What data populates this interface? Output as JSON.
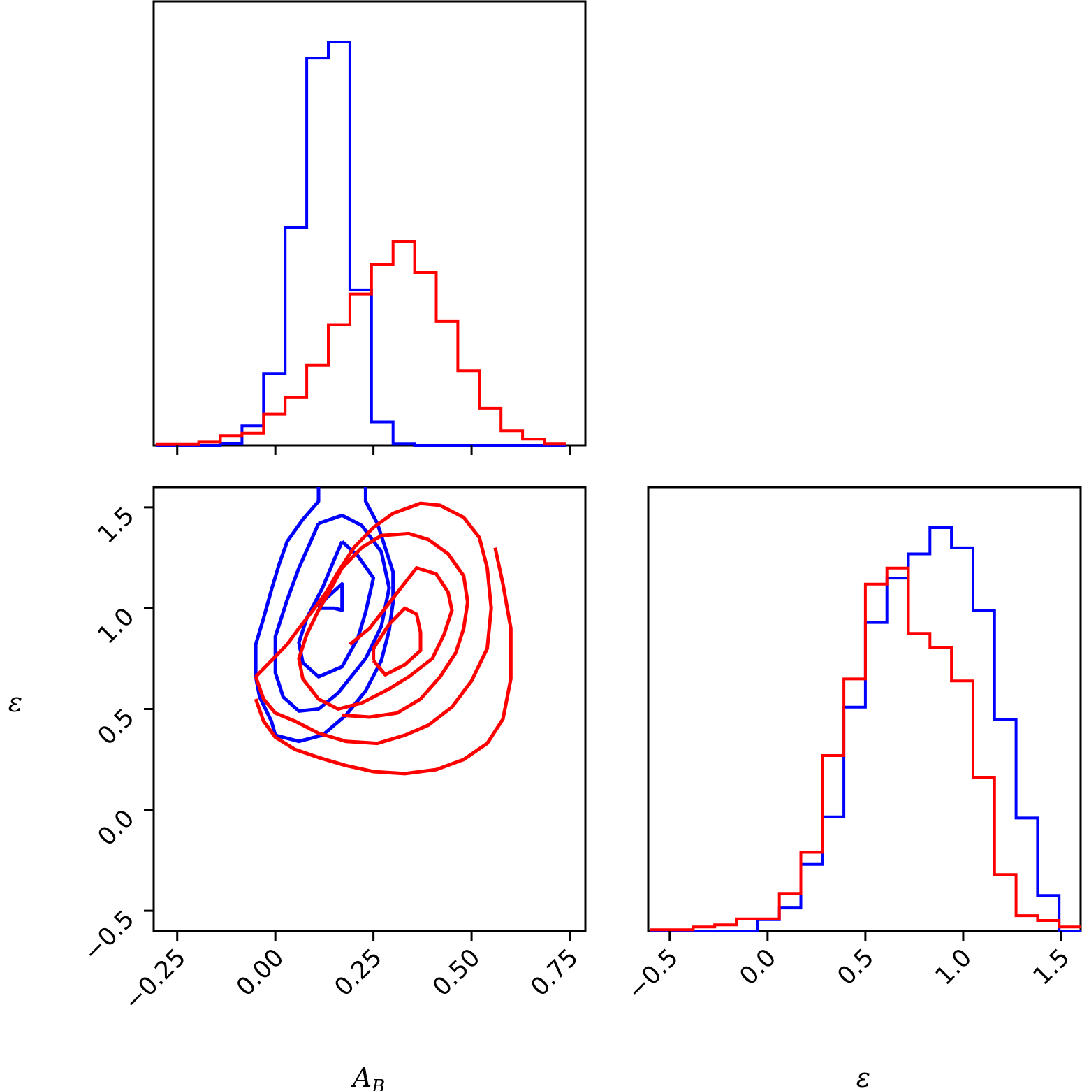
{
  "chart_data": [
    {
      "type": "histogram",
      "panel": "top-left",
      "xlabel": "",
      "ylabel": "",
      "xlim": [
        -0.31,
        0.79
      ],
      "ylim": [
        0,
        1
      ],
      "x_ticks": [
        -0.25,
        0.0,
        0.25,
        0.5,
        0.75
      ],
      "y_ticks": [],
      "tick_labels_shown": false,
      "bin_edges": [
        -0.305,
        -0.25,
        -0.195,
        -0.14,
        -0.085,
        -0.03,
        0.025,
        0.08,
        0.135,
        0.19,
        0.245,
        0.3,
        0.355,
        0.41,
        0.465,
        0.52,
        0.575,
        0.63,
        0.685,
        0.74
      ],
      "series": [
        {
          "color": "#0000ff",
          "counts": [
            0,
            0,
            0,
            0.005,
            0.048,
            0.178,
            0.54,
            0.96,
            1.0,
            0.385,
            0.058,
            0.003,
            0,
            0,
            0,
            0,
            0,
            0,
            0
          ]
        },
        {
          "color": "#ff0000",
          "counts": [
            0.002,
            0.002,
            0.008,
            0.024,
            0.03,
            0.077,
            0.118,
            0.198,
            0.299,
            0.375,
            0.448,
            0.505,
            0.428,
            0.307,
            0.185,
            0.092,
            0.036,
            0.015,
            0.003
          ]
        }
      ]
    },
    {
      "type": "contour",
      "panel": "bottom-left",
      "xlabel": "A_B",
      "ylabel": "ε",
      "xlim": [
        -0.31,
        0.79
      ],
      "ylim": [
        -0.6,
        1.6
      ],
      "x_ticks": [
        -0.25,
        0.0,
        0.25,
        0.5,
        0.75
      ],
      "x_tick_labels": [
        "−0.25",
        "0.00",
        "0.25",
        "0.50",
        "0.75"
      ],
      "y_ticks": [
        -0.5,
        0.0,
        0.5,
        1.0,
        1.5
      ],
      "y_tick_labels": [
        "−0.5",
        "0.0",
        "0.5",
        "1.0",
        "1.5"
      ],
      "series": [
        {
          "color": "#0000ff",
          "contours": [
            [
              [
                0.11,
                1.0
              ],
              [
                0.13,
                1.05
              ],
              [
                0.17,
                1.12
              ],
              [
                0.17,
                0.99
              ],
              [
                0.15,
                1.0
              ],
              [
                0.11,
                1.0
              ]
            ],
            [
              [
                0.17,
                1.33
              ],
              [
                0.21,
                1.26
              ],
              [
                0.25,
                1.15
              ],
              [
                0.23,
                0.98
              ],
              [
                0.21,
                0.85
              ],
              [
                0.17,
                0.71
              ],
              [
                0.11,
                0.66
              ],
              [
                0.07,
                0.73
              ],
              [
                0.06,
                0.83
              ],
              [
                0.08,
                0.95
              ],
              [
                0.12,
                1.1
              ],
              [
                0.15,
                1.24
              ],
              [
                0.17,
                1.33
              ]
            ],
            [
              [
                0.11,
                1.42
              ],
              [
                0.17,
                1.46
              ],
              [
                0.22,
                1.41
              ],
              [
                0.27,
                1.28
              ],
              [
                0.29,
                1.1
              ],
              [
                0.27,
                0.91
              ],
              [
                0.23,
                0.75
              ],
              [
                0.16,
                0.58
              ],
              [
                0.11,
                0.5
              ],
              [
                0.06,
                0.49
              ],
              [
                0.02,
                0.56
              ],
              [
                0.0,
                0.68
              ],
              [
                0.0,
                0.86
              ],
              [
                0.03,
                1.04
              ],
              [
                0.06,
                1.2
              ],
              [
                0.09,
                1.33
              ],
              [
                0.11,
                1.42
              ]
            ],
            [
              [
                0.11,
                1.6
              ],
              [
                0.11,
                1.53
              ],
              [
                0.07,
                1.44
              ],
              [
                0.03,
                1.33
              ],
              [
                0.01,
                1.22
              ],
              [
                -0.01,
                1.09
              ],
              [
                -0.03,
                0.95
              ],
              [
                -0.05,
                0.82
              ],
              [
                -0.05,
                0.66
              ],
              [
                -0.04,
                0.56
              ],
              [
                -0.01,
                0.44
              ],
              [
                0.0,
                0.37
              ],
              [
                0.06,
                0.34
              ],
              [
                0.12,
                0.37
              ],
              [
                0.18,
                0.47
              ],
              [
                0.23,
                0.59
              ],
              [
                0.27,
                0.74
              ],
              [
                0.29,
                0.89
              ],
              [
                0.3,
                1.03
              ],
              [
                0.3,
                1.18
              ],
              [
                0.28,
                1.3
              ],
              [
                0.26,
                1.42
              ],
              [
                0.23,
                1.53
              ],
              [
                0.23,
                1.6
              ]
            ]
          ]
        },
        {
          "color": "#ff0000",
          "contours": [
            [
              [
                0.25,
                0.74
              ],
              [
                0.28,
                0.67
              ],
              [
                0.33,
                0.72
              ],
              [
                0.37,
                0.79
              ],
              [
                0.37,
                0.88
              ],
              [
                0.36,
                0.97
              ],
              [
                0.33,
                1.0
              ],
              [
                0.29,
                0.92
              ],
              [
                0.25,
                0.8
              ],
              [
                0.25,
                0.74
              ]
            ],
            [
              [
                0.19,
                0.82
              ],
              [
                0.24,
                0.9
              ],
              [
                0.28,
                1.0
              ],
              [
                0.32,
                1.1
              ],
              [
                0.36,
                1.2
              ],
              [
                0.41,
                1.17
              ],
              [
                0.44,
                1.08
              ],
              [
                0.45,
                0.99
              ],
              [
                0.43,
                0.87
              ],
              [
                0.4,
                0.75
              ],
              [
                0.34,
                0.66
              ],
              [
                0.29,
                0.6
              ],
              [
                0.22,
                0.53
              ],
              [
                0.16,
                0.5
              ],
              [
                0.11,
                0.55
              ],
              [
                0.07,
                0.65
              ],
              [
                0.06,
                0.75
              ],
              [
                0.08,
                0.87
              ],
              [
                0.11,
                0.99
              ],
              [
                0.14,
                1.09
              ],
              [
                0.17,
                1.2
              ],
              [
                0.22,
                1.3
              ],
              [
                0.27,
                1.36
              ],
              [
                0.34,
                1.37
              ],
              [
                0.39,
                1.34
              ],
              [
                0.44,
                1.27
              ],
              [
                0.48,
                1.16
              ],
              [
                0.49,
                1.03
              ],
              [
                0.48,
                0.9
              ],
              [
                0.46,
                0.78
              ],
              [
                0.42,
                0.66
              ],
              [
                0.37,
                0.55
              ],
              [
                0.31,
                0.48
              ],
              [
                0.24,
                0.46
              ],
              [
                0.17,
                0.47
              ]
            ],
            [
              [
                -0.05,
                0.66
              ],
              [
                -0.02,
                0.72
              ],
              [
                0.03,
                0.82
              ],
              [
                0.06,
                0.9
              ],
              [
                0.1,
                1.0
              ],
              [
                0.13,
                1.08
              ],
              [
                0.16,
                1.18
              ],
              [
                0.2,
                1.3
              ],
              [
                0.25,
                1.4
              ],
              [
                0.3,
                1.47
              ],
              [
                0.37,
                1.52
              ],
              [
                0.42,
                1.51
              ],
              [
                0.48,
                1.45
              ],
              [
                0.52,
                1.35
              ],
              [
                0.54,
                1.2
              ],
              [
                0.55,
                1.0
              ],
              [
                0.54,
                0.8
              ],
              [
                0.5,
                0.64
              ],
              [
                0.45,
                0.51
              ],
              [
                0.39,
                0.42
              ],
              [
                0.33,
                0.37
              ],
              [
                0.26,
                0.33
              ],
              [
                0.18,
                0.34
              ],
              [
                0.11,
                0.38
              ],
              [
                0.05,
                0.44
              ],
              [
                0.0,
                0.48
              ],
              [
                -0.03,
                0.55
              ],
              [
                -0.05,
                0.66
              ]
            ],
            [
              [
                -0.05,
                0.55
              ],
              [
                -0.03,
                0.44
              ],
              [
                0.0,
                0.36
              ],
              [
                0.05,
                0.3
              ],
              [
                0.11,
                0.26
              ],
              [
                0.18,
                0.22
              ],
              [
                0.25,
                0.19
              ],
              [
                0.33,
                0.18
              ],
              [
                0.41,
                0.2
              ],
              [
                0.48,
                0.25
              ],
              [
                0.54,
                0.33
              ],
              [
                0.58,
                0.45
              ],
              [
                0.6,
                0.65
              ],
              [
                0.6,
                0.9
              ],
              [
                0.58,
                1.12
              ],
              [
                0.56,
                1.3
              ]
            ]
          ]
        }
      ]
    },
    {
      "type": "histogram",
      "panel": "bottom-right",
      "xlabel": "ε",
      "ylabel": "",
      "xlim": [
        -0.61,
        1.6
      ],
      "ylim": [
        0,
        1
      ],
      "x_ticks": [
        -0.5,
        0.0,
        0.5,
        1.0,
        1.5
      ],
      "x_tick_labels": [
        "−0.5",
        "0.0",
        "0.5",
        "1.0",
        "1.5"
      ],
      "y_ticks": [],
      "bin_edges": [
        -0.6,
        -0.49,
        -0.38,
        -0.27,
        -0.16,
        -0.05,
        0.06,
        0.17,
        0.28,
        0.39,
        0.5,
        0.61,
        0.72,
        0.83,
        0.94,
        1.05,
        1.16,
        1.27,
        1.38,
        1.49,
        1.6
      ],
      "series": [
        {
          "color": "#0000ff",
          "counts": [
            0,
            0,
            0,
            0,
            0,
            0.028,
            0.057,
            0.165,
            0.283,
            0.555,
            0.765,
            0.875,
            0.935,
            1.0,
            0.95,
            0.795,
            0.525,
            0.28,
            0.088,
            0
          ]
        },
        {
          "color": "#ff0000",
          "counts": [
            0.003,
            0.003,
            0.01,
            0.015,
            0.03,
            0.03,
            0.093,
            0.195,
            0.435,
            0.625,
            0.86,
            0.9,
            0.738,
            0.702,
            0.62,
            0.38,
            0.14,
            0.038,
            0.026,
            0.01
          ]
        }
      ]
    }
  ]
}
